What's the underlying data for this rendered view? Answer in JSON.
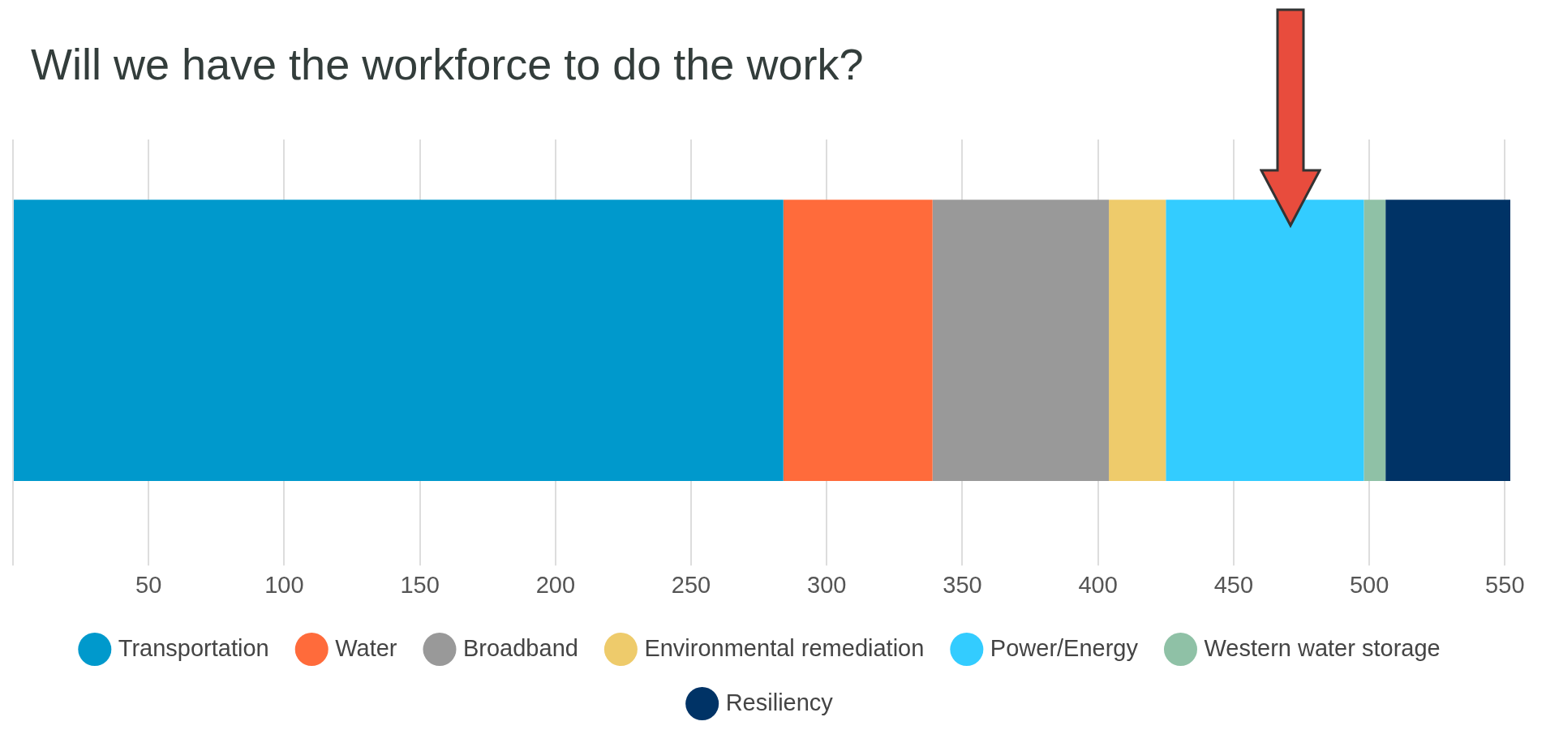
{
  "chart_data": {
    "type": "bar",
    "title": "Will we have the workforce to do the work?",
    "orientation": "horizontal",
    "stacked": true,
    "categories": [
      null
    ],
    "series": [
      {
        "name": "Transportation",
        "color": "#0099cc",
        "values": [
          284
        ]
      },
      {
        "name": "Water",
        "color": "#ff6b3b",
        "values": [
          55
        ]
      },
      {
        "name": "Broadband",
        "color": "#999999",
        "values": [
          65
        ]
      },
      {
        "name": "Environmental remediation",
        "color": "#eecb6b",
        "values": [
          21
        ]
      },
      {
        "name": "Power/Energy",
        "color": "#33ccff",
        "values": [
          73
        ]
      },
      {
        "name": "Western water storage",
        "color": "#8fc1a6",
        "values": [
          8
        ]
      },
      {
        "name": "Resiliency",
        "color": "#003366",
        "values": [
          46
        ]
      }
    ],
    "xlim": [
      0,
      552
    ],
    "xticks": [
      {
        "value": 0,
        "label": null
      },
      50,
      100,
      150,
      200,
      250,
      300,
      350,
      400,
      450,
      500,
      550
    ],
    "grid": "x",
    "legend": "bottom",
    "tick_labels": "x"
  }
}
